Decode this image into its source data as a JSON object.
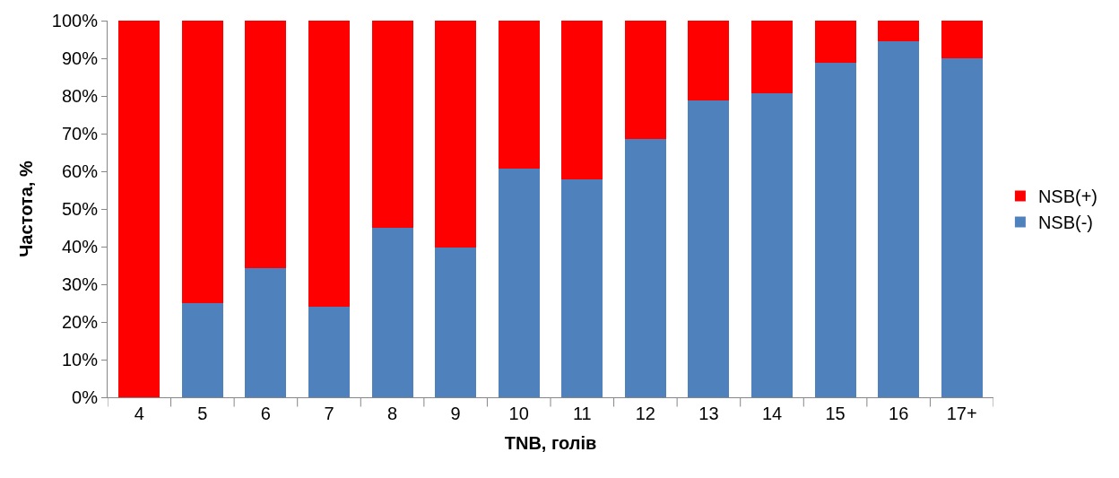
{
  "chart_data": {
    "type": "bar",
    "stacked": true,
    "xlabel": "TNB, голів",
    "ylabel": "Частота, %",
    "categories": [
      "4",
      "5",
      "6",
      "7",
      "8",
      "9",
      "10",
      "11",
      "12",
      "13",
      "14",
      "15",
      "16",
      "17+"
    ],
    "series": [
      {
        "name": "NSB(-)",
        "color": "#4f81bd",
        "values": [
          0,
          25,
          34.4,
          24,
          45,
          39.7,
          60.8,
          57.9,
          68.5,
          78.8,
          80.8,
          88.9,
          94.5,
          89.9
        ]
      },
      {
        "name": "NSB(+)",
        "color": "#ff0000",
        "values": [
          100,
          75,
          65.6,
          76,
          55,
          60.3,
          39.2,
          42.1,
          31.5,
          21.2,
          19.2,
          11.1,
          5.5,
          10.1
        ]
      }
    ],
    "ylim": [
      0,
      100
    ],
    "yticks": [
      {
        "value": 0,
        "label": "0%"
      },
      {
        "value": 10,
        "label": "10%"
      },
      {
        "value": 20,
        "label": "20%"
      },
      {
        "value": 30,
        "label": "30%"
      },
      {
        "value": 40,
        "label": "40%"
      },
      {
        "value": 50,
        "label": "50%"
      },
      {
        "value": 60,
        "label": "60%"
      },
      {
        "value": 70,
        "label": "70%"
      },
      {
        "value": 80,
        "label": "80%"
      },
      {
        "value": 90,
        "label": "90%"
      },
      {
        "value": 100,
        "label": "100%"
      }
    ],
    "grid": false,
    "legend": "right"
  }
}
